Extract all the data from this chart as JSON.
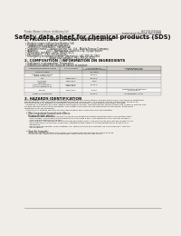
{
  "bg_color": "#f0ede8",
  "header_left": "Product Name: Lithium Ion Battery Cell",
  "header_right_line1": "BUZ101SLE3045A",
  "header_right_line2": "Established / Revision: Dec.7.2009",
  "main_title": "Safety data sheet for chemical products (SDS)",
  "section1_title": "1. PRODUCT AND COMPANY IDENTIFICATION",
  "section1_lines": [
    "• Product name: Lithium Ion Battery Cell",
    "• Product code: Cylindrical-type cell",
    "   (IHR6600U, IHR18650U, IHR18650A)",
    "• Company name:    Sanyo Electric Co., Ltd., Mobile Energy Company",
    "• Address:           2001  Kamikosaka, Sumoto-City, Hyogo, Japan",
    "• Telephone number:   +81-799-26-4111",
    "• Fax number:   +81-799-26-4120",
    "• Emergency telephone number (Weekday): +81-799-26-3862",
    "                              (Night and holiday): +81-799-26-4120"
  ],
  "section2_title": "2. COMPOSITION / INFORMATION ON INGREDIENTS",
  "section2_intro": "• Substance or preparation: Preparation",
  "section2_sub": "• Information about the chemical nature of product:",
  "table_col_headers": [
    "Chemical/chemical name",
    "CAS number",
    "Concentration /\nConcentration range",
    "Classification and\nhazard labeling"
  ],
  "table_sub_header": [
    "Several name",
    "",
    "(30-40%)",
    ""
  ],
  "table_rows": [
    [
      "Lithium cobalt oxide\n(LiMn-Co3(PO4))",
      "-",
      "30-40%",
      "-"
    ],
    [
      "Iron",
      "7439-89-6",
      "16-20%",
      "-"
    ],
    [
      "Aluminum",
      "7429-90-5",
      "2-8%",
      "-"
    ],
    [
      "Graphite\n(Also in graphite-1)\n(All-Mn graphite-1)",
      "77762-42-5\n7782-42-5",
      "10-20%",
      "-"
    ],
    [
      "Copper",
      "7440-50-8",
      "5-15%",
      "Sensitization of the skin\ngroup R43.2"
    ],
    [
      "Organic electrolyte",
      "-",
      "10-20%",
      "Inflammable liquid"
    ]
  ],
  "section3_title": "3. HAZARDS IDENTIFICATION",
  "section3_lines": [
    "For the battery cell, chemical materials are stored in a hermetically sealed metal case, designed to withstand",
    "temperatures and pressures-combinations during normal use. As a result, during normal use, there is no",
    "physical danger of ignition or explosion and there no danger of hazardous materials leakage.",
    "  However, if exposed to a fire, added mechanical shocks, decompressed, when electrolyte ordinary misuse can",
    "be gas releases cannot be operated. The battery cell case will be breached of fire-ashes, hazardous",
    "materials may be released.",
    "  Moreover, if heated strongly by the surrounding fire, some gas may be emitted."
  ],
  "hazard_title": "• Most important hazard and effects:",
  "human_title": "Human health effects:",
  "human_lines": [
    "  Inhalation: The release of the electrolyte has an anesthesia action and stimulates in respiratory tract.",
    "  Skin contact: The release of the electrolyte stimulates a skin. The electrolyte skin contact causes a",
    "  sore and stimulation on the skin.",
    "  Eye contact: The release of the electrolyte stimulates eyes. The electrolyte eye contact causes a sore",
    "  and stimulation on the eye. Especially, substance that causes a strong inflammation of the eye is",
    "  dangerous.",
    "  Environmental effects: Since a battery cell remains in the environment, do not throw out it into the",
    "  environment."
  ],
  "specific_title": "• Specific hazards:",
  "specific_lines": [
    "  If the electrolyte contacts with water, it will generate detrimental hydrogen fluoride.",
    "  Since the seal electrolyte is inflammable liquid, do not bring close to fire."
  ]
}
